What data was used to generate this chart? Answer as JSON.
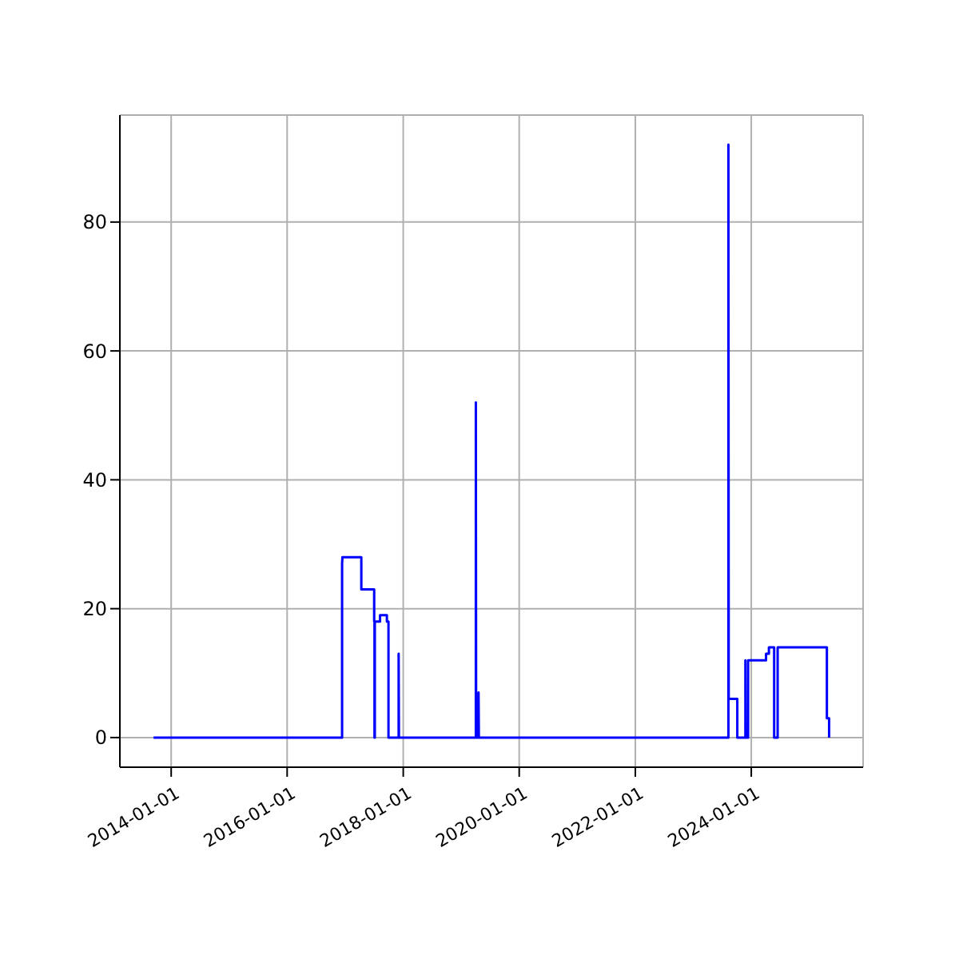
{
  "chart_data": {
    "type": "line",
    "x": [
      "2013-09-12",
      "2016-12-12",
      "2016-12-12",
      "2016-12-14",
      "2017-04-12",
      "2017-04-12",
      "2017-07-02",
      "2017-07-02",
      "2017-07-04",
      "2017-07-04",
      "2017-07-06",
      "2017-07-06",
      "2017-08-08",
      "2017-08-08",
      "2017-09-20",
      "2017-09-20",
      "2017-09-30",
      "2017-09-30",
      "2017-12-03",
      "2017-12-03",
      "2017-12-05",
      "2019-04-03",
      "2019-04-03",
      "2019-04-05",
      "2019-04-20",
      "2019-04-20",
      "2019-04-22",
      "2023-08-10",
      "2023-08-10",
      "2023-08-12",
      "2023-10-05",
      "2023-10-05",
      "2023-11-25",
      "2023-11-25",
      "2023-11-27",
      "2023-12-12",
      "2023-12-12",
      "2024-04-03",
      "2024-04-03",
      "2024-04-21",
      "2024-04-21",
      "2024-05-24",
      "2024-05-24",
      "2024-06-15",
      "2024-06-15",
      "2025-04-21",
      "2025-04-21",
      "2025-05-05",
      "2025-05-05"
    ],
    "series": [
      {
        "color": "#0000ff",
        "values": [
          0,
          0,
          27,
          28,
          28,
          23,
          23,
          18,
          18,
          0,
          0,
          18,
          18,
          19,
          19,
          18,
          18,
          0,
          0,
          13,
          0,
          0,
          52,
          0,
          0,
          7,
          0,
          0,
          92,
          6,
          6,
          0,
          0,
          12,
          0,
          0,
          12,
          12,
          13,
          13,
          14,
          14,
          0,
          0,
          14,
          14,
          3,
          3,
          0
        ]
      }
    ],
    "xlim": [
      "2013-02-12",
      "2025-12-05"
    ],
    "xticks": [
      "2014-01-01",
      "2016-01-01",
      "2018-01-01",
      "2020-01-01",
      "2022-01-01",
      "2024-01-01"
    ],
    "ylim": [
      -4.6,
      96.6
    ],
    "yticks": [
      0,
      20,
      40,
      60,
      80
    ],
    "grid": true,
    "marker": "none",
    "line_style": "solid"
  }
}
